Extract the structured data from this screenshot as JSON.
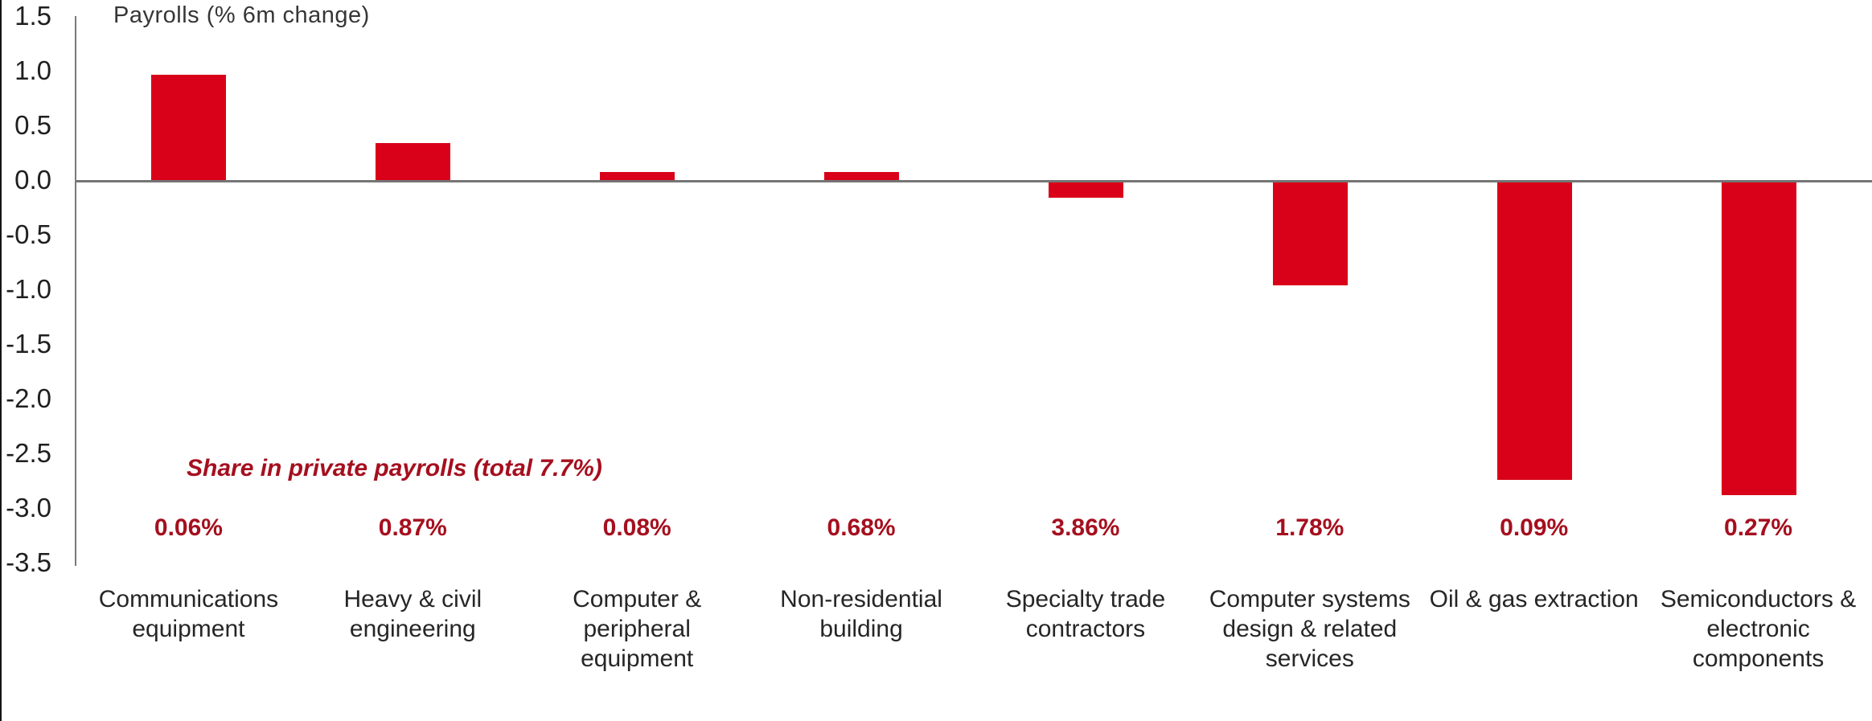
{
  "chart_data": {
    "type": "bar",
    "title": "Payrolls (% 6m change)",
    "categories": [
      "Communications\nequipment",
      "Heavy & civil\nengineering",
      "Computer &\nperipheral equipment",
      "Non-residential\nbuilding",
      "Specialty trade\ncontractors",
      "Computer systems\ndesign & related\nservices",
      "Oil & gas extraction",
      "Semiconductors &\nelectronic\ncomponents"
    ],
    "values": [
      0.96,
      0.34,
      0.07,
      0.07,
      -0.16,
      -0.96,
      -2.74,
      -2.88
    ],
    "share_labels": [
      "0.06%",
      "0.87%",
      "0.08%",
      "0.68%",
      "3.86%",
      "1.78%",
      "0.09%",
      "0.27%"
    ],
    "annotation": "Share in private payrolls (total 7.7%)",
    "ytick_labels": [
      "1.5",
      "1.0",
      "0.5",
      "0.0",
      "-0.5",
      "-1.0",
      "-1.5",
      "-2.0",
      "-2.5",
      "-3.0",
      "-3.5"
    ],
    "yticks": [
      1.5,
      1.0,
      0.5,
      0.0,
      -0.5,
      -1.0,
      -1.5,
      -2.0,
      -2.5,
      -3.0,
      -3.5
    ],
    "ylim": [
      -3.5,
      1.5
    ],
    "xlabel": "",
    "ylabel": "",
    "grid": false,
    "legend": false,
    "bar_color": "#d90019",
    "accent_text_color": "#a50f1e",
    "axis_color": "#7a7a7a"
  }
}
